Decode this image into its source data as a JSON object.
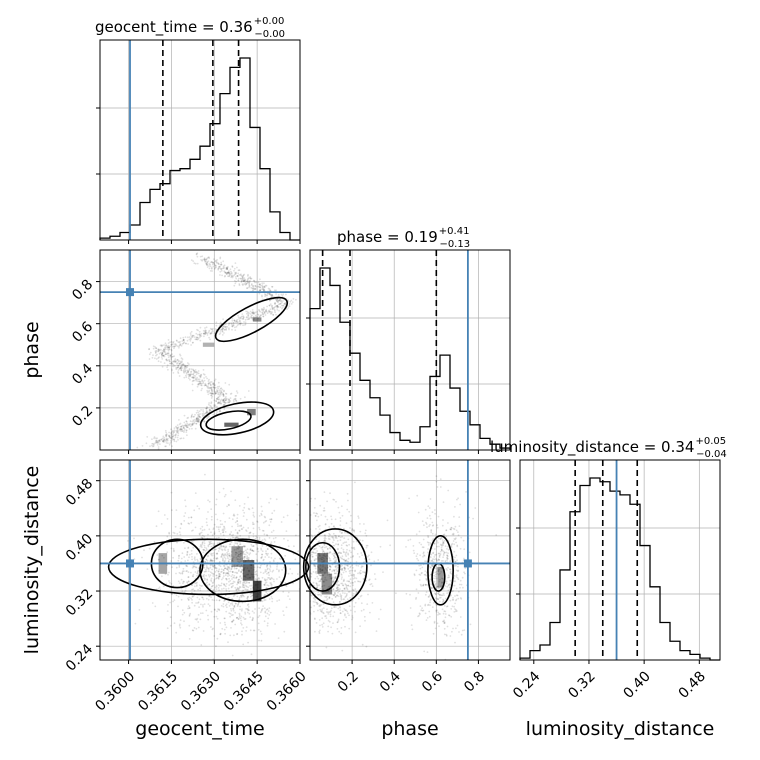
{
  "chart_data": {
    "type": "corner",
    "parameters": [
      "geocent_time",
      "phase",
      "luminosity_distance"
    ],
    "truths": {
      "geocent_time": 0.36005,
      "phase": 0.75,
      "luminosity_distance": 0.36
    },
    "titles": [
      {
        "param": "geocent_time",
        "prefix": "geocent_time = 0.36",
        "plus": "+0.00",
        "minus": "−0.00"
      },
      {
        "param": "phase",
        "prefix": "phase = 0.19",
        "plus": "+0.41",
        "minus": "−0.13"
      },
      {
        "param": "luminosity_distance",
        "prefix": "luminosity_distance = 0.34",
        "plus": "+0.05",
        "minus": "−0.04"
      }
    ],
    "axes": {
      "geocent_time": {
        "range": [
          0.359,
          0.366
        ],
        "ticks": [
          0.36,
          0.3615,
          0.363,
          0.3645,
          0.366
        ],
        "tick_labels": [
          "0.3600",
          "0.3615",
          "0.3630",
          "0.3645",
          "0.3660"
        ]
      },
      "phase": {
        "range": [
          0.0,
          0.95
        ],
        "ticks": [
          0.2,
          0.4,
          0.6,
          0.8
        ],
        "tick_labels": [
          "0.2",
          "0.4",
          "0.6",
          "0.8"
        ]
      },
      "luminosity_distance": {
        "range": [
          0.22,
          0.51
        ],
        "ticks": [
          0.24,
          0.32,
          0.4,
          0.48
        ],
        "tick_labels": [
          "0.24",
          "0.32",
          "0.40",
          "0.48"
        ]
      }
    },
    "quantile_lines": {
      "geocent_time": [
        0.3612,
        0.36295,
        0.36385
      ],
      "phase": [
        0.06,
        0.19,
        0.6
      ],
      "luminosity_distance": [
        0.3,
        0.34,
        0.39
      ]
    },
    "histograms": {
      "geocent_time": {
        "edges": [
          0.359,
          0.35935,
          0.3597,
          0.36005,
          0.3604,
          0.36075,
          0.3611,
          0.36145,
          0.3618,
          0.36215,
          0.3625,
          0.36285,
          0.3632,
          0.36355,
          0.3639,
          0.36425,
          0.3646,
          0.36495,
          0.3653,
          0.36565,
          0.366
        ],
        "counts": [
          0.01,
          0.02,
          0.04,
          0.08,
          0.2,
          0.27,
          0.3,
          0.37,
          0.38,
          0.43,
          0.5,
          0.62,
          0.78,
          0.92,
          0.97,
          0.6,
          0.38,
          0.15,
          0.04,
          0.0
        ]
      },
      "phase": {
        "edges": [
          0.0,
          0.0475,
          0.095,
          0.1425,
          0.19,
          0.2375,
          0.285,
          0.3325,
          0.38,
          0.4275,
          0.475,
          0.5225,
          0.57,
          0.6175,
          0.665,
          0.7125,
          0.76,
          0.8075,
          0.855,
          0.9025,
          0.95
        ],
        "counts": [
          0.73,
          0.94,
          0.85,
          0.66,
          0.5,
          0.36,
          0.27,
          0.18,
          0.09,
          0.05,
          0.04,
          0.12,
          0.38,
          0.49,
          0.32,
          0.2,
          0.13,
          0.06,
          0.03,
          0.01
        ]
      },
      "luminosity_distance": {
        "edges": [
          0.22,
          0.2345,
          0.249,
          0.2635,
          0.278,
          0.2925,
          0.307,
          0.3215,
          0.336,
          0.3505,
          0.365,
          0.3795,
          0.394,
          0.4085,
          0.423,
          0.4375,
          0.452,
          0.4665,
          0.481,
          0.4955,
          0.51
        ],
        "counts": [
          0.01,
          0.05,
          0.08,
          0.2,
          0.48,
          0.79,
          0.93,
          0.97,
          0.95,
          0.9,
          0.88,
          0.83,
          0.61,
          0.39,
          0.2,
          0.1,
          0.05,
          0.03,
          0.01,
          0.0
        ]
      }
    },
    "pairs": [
      {
        "x": "geocent_time",
        "y": "phase",
        "style": "2d-histogram-contours"
      },
      {
        "x": "geocent_time",
        "y": "luminosity_distance",
        "style": "2d-histogram-contours"
      },
      {
        "x": "phase",
        "y": "luminosity_distance",
        "style": "2d-histogram-contours"
      }
    ],
    "grid": true,
    "colors": {
      "truth": "#4682b4",
      "hist": "#000000",
      "quantile": "#000000",
      "density": "#000000",
      "grid": "#b0b0b0"
    }
  }
}
